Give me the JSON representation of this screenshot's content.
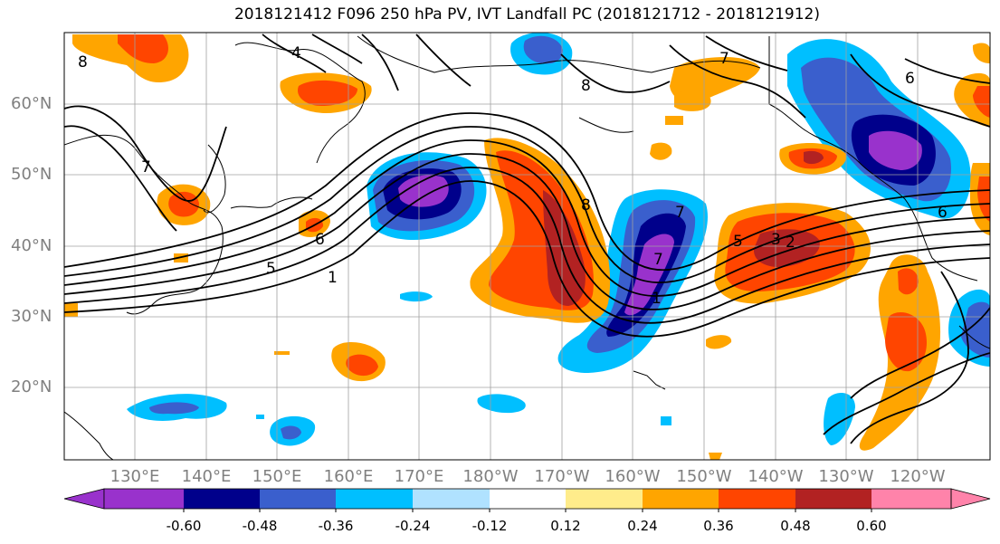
{
  "title": "2018121412 F096 250 hPa PV, IVT Landfall PC (2018121712 - 2018121912)",
  "lon_labels": [
    "130°E",
    "140°E",
    "150°E",
    "160°E",
    "170°E",
    "180°W",
    "170°W",
    "160°W",
    "150°W",
    "140°W",
    "130°W",
    "120°W"
  ],
  "lat_labels": [
    "60°N",
    "50°N",
    "40°N",
    "30°N",
    "20°N"
  ],
  "colorbar": {
    "ticks": [
      "-0.60",
      "-0.48",
      "-0.36",
      "-0.24",
      "-0.12",
      "0.12",
      "0.24",
      "0.36",
      "0.48",
      "0.60"
    ],
    "colors": [
      "#9932cc",
      "#00008b",
      "#3a5fcd",
      "#00bfff",
      "#b0e2ff",
      "#ffffff",
      "#ffec8b",
      "#ffa500",
      "#ff4500",
      "#b22222",
      "#ff83aa"
    ]
  },
  "contour_labels": [
    "4",
    "8",
    "6",
    "7",
    "7",
    "8",
    "5",
    "1",
    "6",
    "8",
    "7",
    "7",
    "5",
    "3",
    "2",
    "6",
    "1"
  ]
}
